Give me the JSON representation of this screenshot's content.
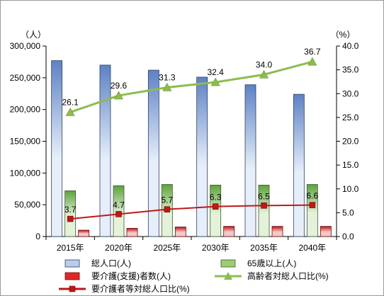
{
  "chart_data": {
    "type": "bar+line",
    "categories": [
      "2015年",
      "2020年",
      "2025年",
      "2030年",
      "2035年",
      "2040年"
    ],
    "left_axis": {
      "unit_label": "（人）",
      "ylim": [
        0,
        300000
      ],
      "ticks": [
        "0",
        "50,000",
        "100,000",
        "150,000",
        "200,000",
        "250,000",
        "300,000"
      ]
    },
    "right_axis": {
      "unit_label": "（%）",
      "ylim": [
        0,
        40
      ],
      "ticks": [
        "0.0",
        "5.0",
        "10.0",
        "15.0",
        "20.0",
        "25.0",
        "30.0",
        "35.0",
        "40.0"
      ]
    },
    "bar_series": [
      {
        "name": "総人口(人)",
        "axis": "left",
        "color": "#b9cdea",
        "edge": "#2f3f5f",
        "values": [
          277000,
          270000,
          262000,
          251000,
          239000,
          224000
        ]
      },
      {
        "name": "65歳以上(人)",
        "axis": "left",
        "color": "#9ccc74",
        "edge": "#3d5b2a",
        "values": [
          72000,
          80000,
          82000,
          81000,
          81000,
          82000
        ]
      },
      {
        "name": "要介護(支援)者数(人)",
        "axis": "left",
        "color": "#e02828",
        "edge": "#6b0d0d",
        "values": [
          10000,
          13000,
          15000,
          16000,
          16000,
          16000
        ]
      }
    ],
    "line_series": [
      {
        "name": "高齢者対総人口比(%)",
        "axis": "right",
        "color": "#8dbc4f",
        "marker": "triangle",
        "values": [
          26.1,
          29.6,
          31.3,
          32.4,
          34.0,
          36.7
        ],
        "labels": [
          "26.1",
          "29.6",
          "31.3",
          "32.4",
          "34.0",
          "36.7"
        ]
      },
      {
        "name": "要介護者等対総人口比(%)",
        "axis": "right",
        "color": "#c01818",
        "marker": "square",
        "values": [
          3.7,
          4.7,
          5.7,
          6.3,
          6.5,
          6.6
        ],
        "labels": [
          "3.7",
          "4.7",
          "5.7",
          "6.3",
          "6.5",
          "6.6"
        ]
      }
    ],
    "legend_position": "bottom",
    "grid": false
  }
}
